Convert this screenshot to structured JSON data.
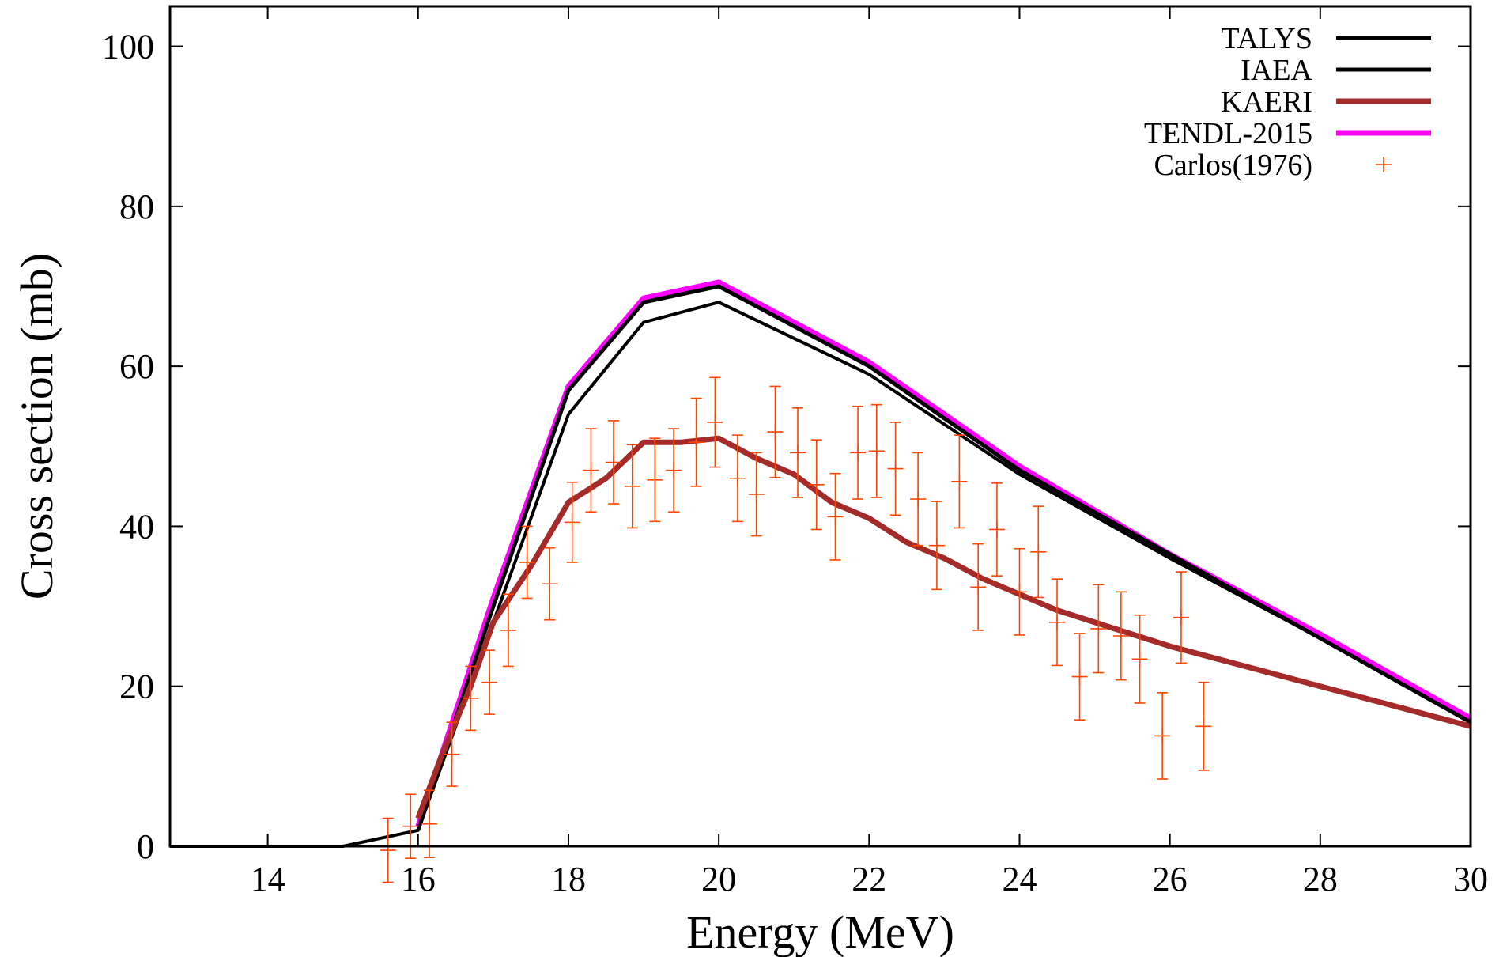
{
  "chart_data": {
    "type": "line",
    "title": "",
    "xlabel": "Energy (MeV)",
    "ylabel": "Cross section (mb)",
    "xlim": [
      12.7,
      30
    ],
    "ylim": [
      0,
      105
    ],
    "xticks": [
      14,
      16,
      18,
      20,
      22,
      24,
      26,
      28,
      30
    ],
    "yticks": [
      0,
      20,
      40,
      60,
      80,
      100
    ],
    "legend_position": "top-right",
    "series": [
      {
        "name": "TALYS",
        "type": "line",
        "color": "#000000",
        "x": [
          12.7,
          15,
          16,
          17,
          18,
          19,
          20,
          22,
          24,
          26,
          28,
          30
        ],
        "y": [
          0,
          0,
          2,
          28,
          54,
          65.5,
          68,
          59,
          46.5,
          36,
          26,
          15.5
        ]
      },
      {
        "name": "IAEA",
        "type": "line",
        "color": "#000000",
        "x": [
          16,
          17,
          18,
          19,
          20,
          22,
          24,
          26,
          28,
          30
        ],
        "y": [
          2,
          30,
          57,
          68,
          70,
          60,
          47,
          36.5,
          26,
          15.5
        ]
      },
      {
        "name": "KAERI",
        "type": "line",
        "color": "#a52a2a",
        "x": [
          16,
          16.3,
          16.7,
          17,
          17.5,
          18,
          18.5,
          19,
          19.5,
          20,
          20.5,
          21,
          21.5,
          22,
          22.5,
          23,
          23.5,
          24,
          24.5,
          25,
          25.5,
          26,
          27,
          28,
          29,
          30
        ],
        "y": [
          3.5,
          11,
          20,
          28,
          35,
          43,
          46,
          50.5,
          50.5,
          51,
          48.5,
          46.5,
          43,
          41,
          38,
          36,
          33.5,
          31.5,
          29.5,
          28,
          26.5,
          25,
          22.5,
          20,
          17.5,
          15
        ]
      },
      {
        "name": "TENDL-2015",
        "type": "line",
        "color": "#ff00ff",
        "x": [
          16,
          17,
          18,
          19,
          20,
          22,
          24,
          26,
          28,
          30
        ],
        "y": [
          2.5,
          31,
          57.5,
          68.5,
          70.5,
          60.5,
          47.5,
          36.5,
          26.5,
          16
        ]
      },
      {
        "name": "Carlos(1976)",
        "type": "scatter",
        "color": "#ff4500",
        "points": [
          {
            "x": 15.6,
            "y": -0.5,
            "err": 4
          },
          {
            "x": 15.9,
            "y": 2.5,
            "err": 4
          },
          {
            "x": 16.15,
            "y": 2.8,
            "err": 4.2
          },
          {
            "x": 16.45,
            "y": 11.5,
            "err": 4
          },
          {
            "x": 16.7,
            "y": 18.5,
            "err": 4
          },
          {
            "x": 16.95,
            "y": 20.5,
            "err": 4
          },
          {
            "x": 17.2,
            "y": 27,
            "err": 4.5
          },
          {
            "x": 17.45,
            "y": 35.5,
            "err": 4.5
          },
          {
            "x": 17.75,
            "y": 32.8,
            "err": 4.5
          },
          {
            "x": 18.05,
            "y": 40.5,
            "err": 5
          },
          {
            "x": 18.3,
            "y": 47,
            "err": 5.2
          },
          {
            "x": 18.6,
            "y": 48,
            "err": 5.2
          },
          {
            "x": 18.85,
            "y": 45,
            "err": 5.2
          },
          {
            "x": 19.15,
            "y": 45.8,
            "err": 5.2
          },
          {
            "x": 19.4,
            "y": 47,
            "err": 5.2
          },
          {
            "x": 19.7,
            "y": 50.5,
            "err": 5.5
          },
          {
            "x": 19.95,
            "y": 53,
            "err": 5.6
          },
          {
            "x": 20.25,
            "y": 46,
            "err": 5.4
          },
          {
            "x": 20.5,
            "y": 44,
            "err": 5.2
          },
          {
            "x": 20.75,
            "y": 51.8,
            "err": 5.7
          },
          {
            "x": 21.05,
            "y": 49.2,
            "err": 5.6
          },
          {
            "x": 21.3,
            "y": 45.2,
            "err": 5.6
          },
          {
            "x": 21.55,
            "y": 41.2,
            "err": 5.4
          },
          {
            "x": 21.85,
            "y": 49.2,
            "err": 5.8
          },
          {
            "x": 22.1,
            "y": 49.4,
            "err": 5.8
          },
          {
            "x": 22.35,
            "y": 47.2,
            "err": 5.8
          },
          {
            "x": 22.65,
            "y": 43.4,
            "err": 5.8
          },
          {
            "x": 22.9,
            "y": 37.6,
            "err": 5.5
          },
          {
            "x": 23.2,
            "y": 45.6,
            "err": 5.8
          },
          {
            "x": 23.45,
            "y": 32.4,
            "err": 5.4
          },
          {
            "x": 23.7,
            "y": 39.6,
            "err": 5.8
          },
          {
            "x": 24.0,
            "y": 31.8,
            "err": 5.4
          },
          {
            "x": 24.25,
            "y": 36.8,
            "err": 5.7
          },
          {
            "x": 24.5,
            "y": 28,
            "err": 5.4
          },
          {
            "x": 24.8,
            "y": 21.2,
            "err": 5.4
          },
          {
            "x": 25.05,
            "y": 27.2,
            "err": 5.5
          },
          {
            "x": 25.35,
            "y": 26.3,
            "err": 5.5
          },
          {
            "x": 25.6,
            "y": 23.4,
            "err": 5.5
          },
          {
            "x": 25.9,
            "y": 13.8,
            "err": 5.4
          },
          {
            "x": 26.15,
            "y": 28.6,
            "err": 5.7
          },
          {
            "x": 26.45,
            "y": 15,
            "err": 5.5
          }
        ]
      }
    ]
  }
}
